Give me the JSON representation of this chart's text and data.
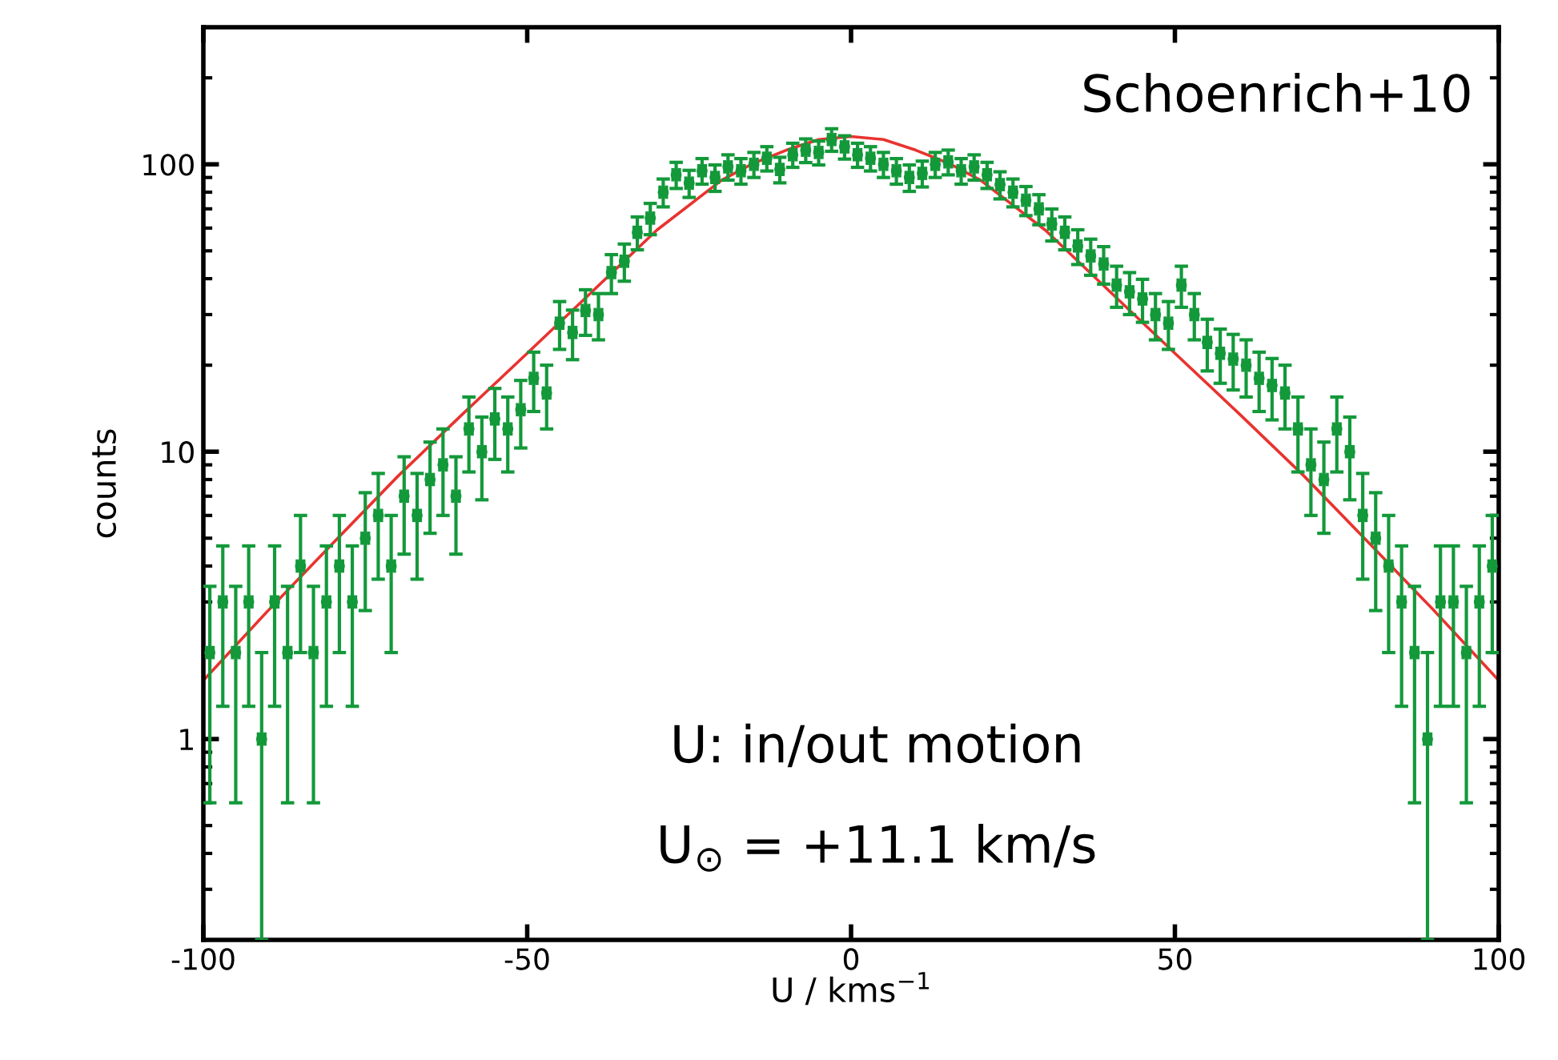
{
  "chart_data": {
    "type": "scatter",
    "xlabel": "U / kms$^{−1}$",
    "ylabel": "counts",
    "annotations": [
      "Schoenrich+10",
      "U: in/out motion",
      "U$_{⊙}$ = +11.1 km/s"
    ],
    "log": "y",
    "xlim": [
      -100,
      100
    ],
    "xticks": [
      -100,
      -50,
      0,
      50,
      100
    ],
    "ylim": [
      0.2,
      300
    ],
    "yticks": [
      1,
      10,
      100
    ],
    "grid": false,
    "legend": false,
    "series": [
      {
        "color": "#13993a",
        "marker": "circle",
        "x": [
          -99,
          -97,
          -95,
          -93,
          -91,
          -89,
          -87,
          -85,
          -83,
          -81,
          -79,
          -77,
          -75,
          -73,
          -71,
          -69,
          -67,
          -65,
          -63,
          -61,
          -59,
          -57,
          -55,
          -53,
          -51,
          -49,
          -47,
          -45,
          -43,
          -41,
          -39,
          -37,
          -35,
          -33,
          -31,
          -29,
          -27,
          -25,
          -23,
          -21,
          -19,
          -17,
          -15,
          -13,
          -11,
          -9,
          -7,
          -5,
          -3,
          -1,
          1,
          3,
          5,
          7,
          9,
          11,
          13,
          15,
          17,
          19,
          21,
          23,
          25,
          27,
          29,
          31,
          33,
          35,
          37,
          39,
          41,
          43,
          45,
          47,
          49,
          51,
          53,
          55,
          57,
          59,
          61,
          63,
          65,
          67,
          69,
          71,
          73,
          75,
          77,
          79,
          81,
          83,
          85,
          87,
          89,
          91,
          93,
          95,
          97,
          99
        ],
        "values": [
          2,
          3,
          2,
          3,
          1,
          3,
          2,
          4,
          2,
          3,
          4,
          3,
          5,
          6,
          4,
          7,
          6,
          8,
          9,
          7,
          12,
          10,
          13,
          12,
          14,
          18,
          16,
          28,
          26,
          31,
          30,
          42,
          46,
          58,
          65,
          80,
          92,
          86,
          95,
          90,
          98,
          95,
          100,
          105,
          96,
          108,
          112,
          110,
          122,
          115,
          108,
          105,
          100,
          95,
          90,
          93,
          100,
          102,
          95,
          98,
          92,
          85,
          80,
          75,
          70,
          62,
          58,
          52,
          48,
          45,
          38,
          36,
          34,
          30,
          28,
          38,
          30,
          24,
          22,
          21,
          20,
          18,
          17,
          16,
          12,
          9,
          8,
          12,
          10,
          6,
          5,
          4,
          3,
          2,
          1,
          3,
          3,
          2,
          3,
          4
        ],
        "errors": [
          1.4,
          1.7,
          1.4,
          1.7,
          [
            0.2,
            2
          ],
          1.7,
          1.4,
          2,
          1.4,
          1.7,
          2,
          1.7,
          2.2,
          2.4,
          2,
          2.6,
          2.4,
          2.8,
          3,
          2.6,
          3.5,
          3.2,
          3.6,
          3.5,
          3.7,
          4.2,
          4,
          5.3,
          5.1,
          5.6,
          5.5,
          6.5,
          6.8,
          7.6,
          8.1,
          8.9,
          9.6,
          9.3,
          9.7,
          9.5,
          9.9,
          9.7,
          10,
          10.2,
          9.8,
          10.4,
          10.6,
          10.5,
          11,
          10.7,
          10.4,
          10.2,
          10,
          9.7,
          9.5,
          9.6,
          10,
          10.1,
          9.7,
          9.9,
          9.6,
          9.2,
          8.9,
          8.7,
          8.4,
          7.9,
          7.6,
          7.2,
          6.9,
          6.7,
          6.2,
          6,
          5.8,
          5.5,
          5.3,
          6.2,
          5.5,
          4.9,
          4.7,
          4.6,
          4.5,
          4.2,
          4.1,
          4,
          3.5,
          3,
          2.8,
          3.5,
          3.2,
          2.4,
          2.2,
          2,
          1.7,
          1.4,
          [
            0.2,
            2
          ],
          1.7,
          1.7,
          1.4,
          1.7,
          2
        ],
        "xerrors": [
          0.5,
          0.5,
          0.5,
          0.5,
          0.5,
          0.5,
          0.5,
          0.5,
          0.5,
          0.5,
          0.5,
          0.5,
          0.5,
          0.5,
          0.5,
          0.5,
          0.5,
          0.5,
          0.5,
          0.5,
          0.5,
          0.5,
          0.5,
          0.5,
          0.5,
          0.5,
          0.5,
          0.5,
          0.5,
          0.5,
          0.5,
          0.5,
          0.5,
          0.5,
          0.5,
          0.5,
          0.5,
          0.5,
          0.5,
          0.5,
          0.5,
          0.5,
          0.5,
          0.5,
          0.5,
          0.5,
          0.5,
          0.5,
          0.5,
          0.5,
          0.5,
          0.5,
          0.5,
          0.5,
          0.5,
          0.5,
          0.5,
          0.5,
          0.5,
          0.5,
          0.5,
          0.5,
          0.5,
          0.5,
          0.5,
          0.5,
          0.5,
          0.5,
          0.5,
          0.5,
          0.5,
          0.5,
          0.5,
          0.5,
          0.5,
          0.5,
          0.5,
          0.5,
          0.5,
          0.5,
          0.5,
          0.5,
          0.5,
          0.5,
          0.5,
          0.5,
          0.5,
          0.5,
          0.5,
          0.5,
          0.5,
          0.5,
          0.5,
          0.5,
          0.5,
          0.5,
          0.5,
          0.5,
          0.5,
          0.5
        ]
      },
      {
        "type": "line",
        "color": "#e8332f",
        "x": [
          -100,
          -90,
          -80,
          -70,
          -60,
          -50,
          -40,
          -30,
          -20,
          -15,
          -10,
          -5,
          0,
          5,
          10,
          15,
          20,
          30,
          40,
          50,
          60,
          70,
          80,
          90,
          100
        ],
        "values": [
          1.6,
          2.8,
          4.8,
          8.2,
          13.5,
          22,
          36,
          59,
          88,
          101,
          112,
          122,
          125,
          122,
          112,
          101,
          88,
          59,
          36,
          22,
          13.5,
          8.2,
          4.8,
          2.8,
          1.6
        ]
      }
    ]
  }
}
